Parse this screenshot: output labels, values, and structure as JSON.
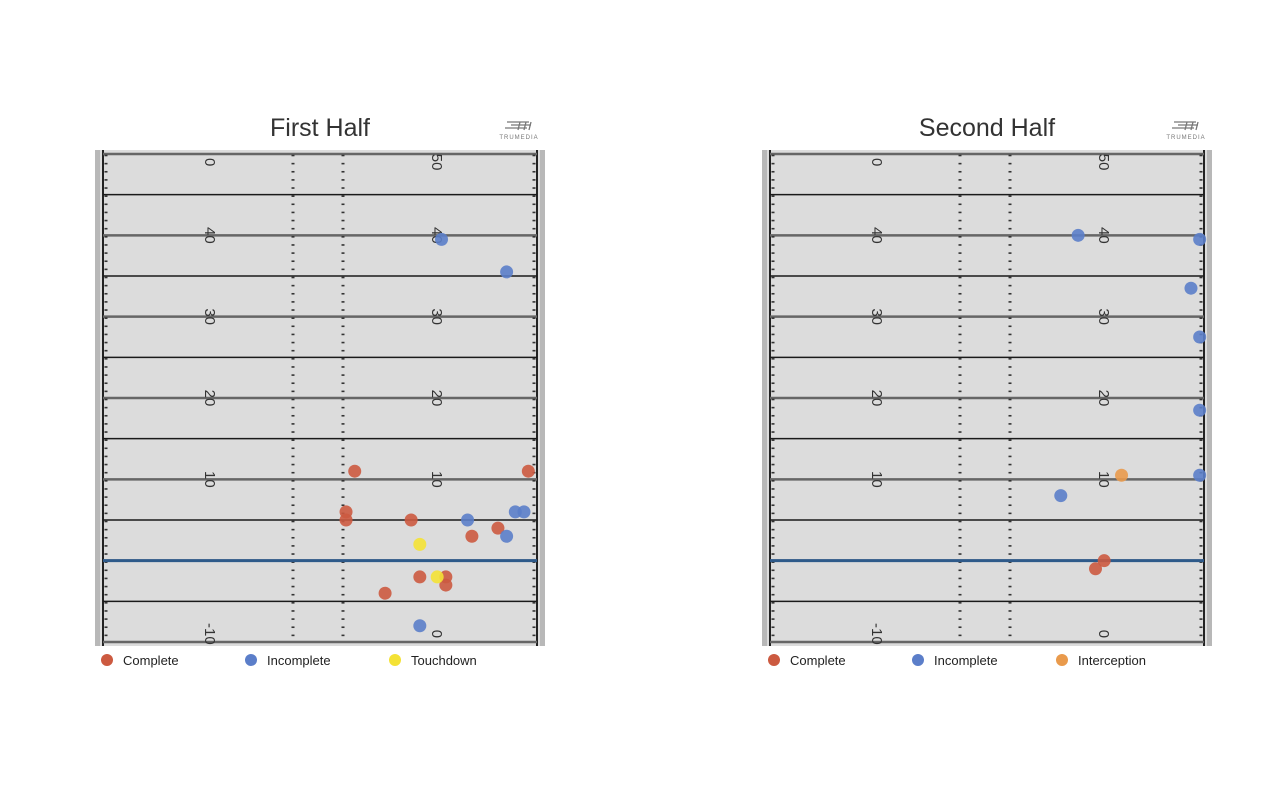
{
  "colors": {
    "complete": "#cc5a40",
    "incomplete": "#5b7ec9",
    "touchdown": "#f4e235",
    "interception": "#e99a4c",
    "field": "#dcdcdc",
    "scrimmage": "#2e5a8a"
  },
  "logo": {
    "text": "TRUMEDIA"
  },
  "panels": [
    {
      "title": "First Half",
      "legend": [
        {
          "label": "Complete",
          "color_key": "complete"
        },
        {
          "label": "Incomplete",
          "color_key": "incomplete"
        },
        {
          "label": "Touchdown",
          "color_key": "touchdown"
        }
      ],
      "chart_data": {
        "type": "scatter",
        "title": "First Half",
        "x_axis": "lateral field position (sideline to sideline, 0–1)",
        "y_axis": "yards past line of scrimmage",
        "ylim": [
          -10,
          50
        ],
        "line_of_scrimmage": 0,
        "yard_labels_left": [
          "0",
          "40",
          "30",
          "20",
          "10",
          "-10"
        ],
        "yard_labels_right": [
          "50",
          "40",
          "30",
          "20",
          "10",
          "0"
        ],
        "series": [
          {
            "name": "Complete",
            "points": [
              {
                "x": 0.58,
                "y": 11
              },
              {
                "x": 0.98,
                "y": 11
              },
              {
                "x": 0.56,
                "y": 6
              },
              {
                "x": 0.56,
                "y": 5
              },
              {
                "x": 0.71,
                "y": 5
              },
              {
                "x": 0.91,
                "y": 4
              },
              {
                "x": 0.85,
                "y": 3
              },
              {
                "x": 0.73,
                "y": -2
              },
              {
                "x": 0.79,
                "y": -2
              },
              {
                "x": 0.79,
                "y": -3
              },
              {
                "x": 0.65,
                "y": -4
              }
            ]
          },
          {
            "name": "Incomplete",
            "points": [
              {
                "x": 0.78,
                "y": 39.5
              },
              {
                "x": 0.93,
                "y": 35.5
              },
              {
                "x": 0.84,
                "y": 5
              },
              {
                "x": 0.95,
                "y": 6
              },
              {
                "x": 0.97,
                "y": 6
              },
              {
                "x": 0.93,
                "y": 3
              },
              {
                "x": 0.73,
                "y": -8
              }
            ]
          },
          {
            "name": "Touchdown",
            "points": [
              {
                "x": 0.73,
                "y": 2
              },
              {
                "x": 0.77,
                "y": -2
              }
            ]
          }
        ]
      }
    },
    {
      "title": "Second Half",
      "legend": [
        {
          "label": "Complete",
          "color_key": "complete"
        },
        {
          "label": "Incomplete",
          "color_key": "incomplete"
        },
        {
          "label": "Interception",
          "color_key": "interception"
        }
      ],
      "chart_data": {
        "type": "scatter",
        "title": "Second Half",
        "x_axis": "lateral field position (sideline to sideline, 0–1)",
        "y_axis": "yards past line of scrimmage",
        "ylim": [
          -10,
          50
        ],
        "line_of_scrimmage": 0,
        "yard_labels_left": [
          "0",
          "40",
          "30",
          "20",
          "10",
          "-10"
        ],
        "yard_labels_right": [
          "50",
          "40",
          "30",
          "20",
          "10",
          "0"
        ],
        "series": [
          {
            "name": "Complete",
            "points": [
              {
                "x": 0.77,
                "y": 0
              },
              {
                "x": 0.75,
                "y": -1
              }
            ]
          },
          {
            "name": "Incomplete",
            "points": [
              {
                "x": 0.71,
                "y": 40
              },
              {
                "x": 0.99,
                "y": 39.5
              },
              {
                "x": 0.97,
                "y": 33.5
              },
              {
                "x": 0.99,
                "y": 27.5
              },
              {
                "x": 0.99,
                "y": 18.5
              },
              {
                "x": 0.99,
                "y": 10.5
              },
              {
                "x": 0.67,
                "y": 8
              }
            ]
          },
          {
            "name": "Interception",
            "points": [
              {
                "x": 0.81,
                "y": 10.5
              }
            ]
          }
        ]
      }
    }
  ]
}
